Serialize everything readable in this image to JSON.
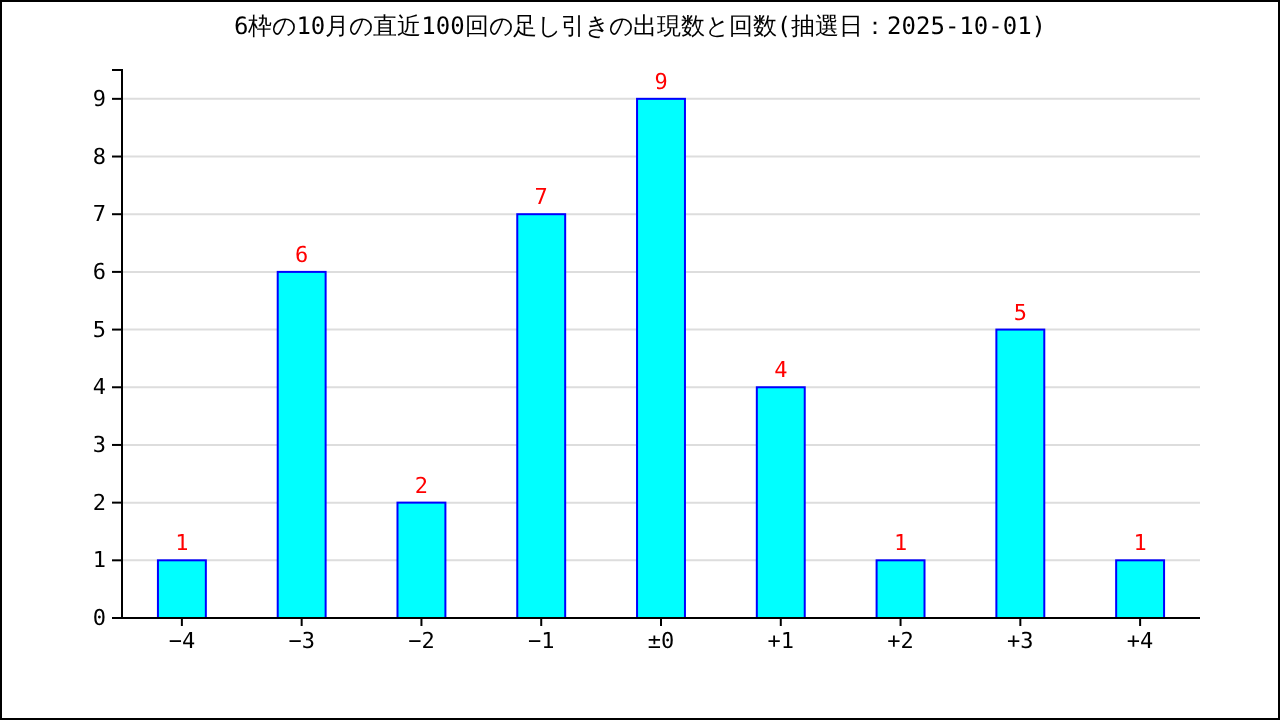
{
  "chart_data": {
    "type": "bar",
    "title": "6枠の10月の直近100回の足し引きの出現数と回数(抽選日：2025-10-01)",
    "categories": [
      "−4",
      "−3",
      "−2",
      "−1",
      "±0",
      "+1",
      "+2",
      "+3",
      "+4"
    ],
    "series": [
      {
        "color": "#00ffff",
        "values": [
          1,
          6,
          2,
          7,
          9,
          4,
          1,
          5,
          1
        ]
      }
    ],
    "ylim": [
      0,
      9.5
    ],
    "yticks": [
      0,
      1,
      2,
      3,
      4,
      5,
      6,
      7,
      8,
      9
    ],
    "grid": "y",
    "data_labels": true
  }
}
